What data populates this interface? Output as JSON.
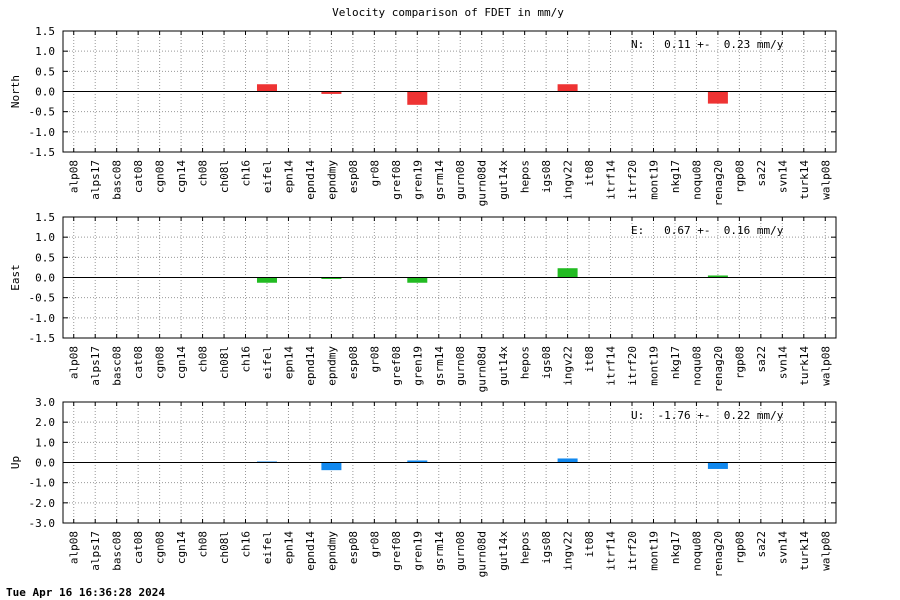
{
  "title": "Velocity comparison of FDET in mm/y",
  "footer": "Tue Apr 16 16:36:28 2024",
  "chart_data": {
    "type": "bar",
    "categories": [
      "alp08",
      "alps17",
      "basc08",
      "cat08",
      "cgn08",
      "cgn14",
      "ch08",
      "ch08l",
      "ch16",
      "eifel",
      "epn14",
      "epnd14",
      "epndmy",
      "esp08",
      "gr08",
      "gref08",
      "gren19",
      "gsrm14",
      "gurn08",
      "gurn08d",
      "gut14x",
      "hepos",
      "igs08",
      "ingv22",
      "it08",
      "itrf14",
      "itrf20",
      "mont19",
      "nkg17",
      "noqu08",
      "renag20",
      "rgp08",
      "sa22",
      "svn14",
      "turk14",
      "walp08"
    ],
    "panels": [
      {
        "ylabel": "North",
        "ylim": [
          -1.5,
          1.5
        ],
        "yticks": [
          "1.5",
          "1.0",
          "0.5",
          "0.0",
          "-0.5",
          "-1.0",
          "-1.5"
        ],
        "color": "#ee3333",
        "annotation": "N:   0.11 +-  0.23 mm/y",
        "values": [
          0,
          0,
          0,
          0,
          0,
          0,
          0,
          0,
          0,
          0.18,
          0,
          0,
          -0.06,
          0,
          0,
          0,
          -0.33,
          0,
          0,
          0,
          0,
          0,
          0,
          0.18,
          0,
          0,
          0,
          0,
          0,
          0,
          -0.3,
          0,
          0,
          0,
          0,
          0
        ]
      },
      {
        "ylabel": "East",
        "ylim": [
          -1.5,
          1.5
        ],
        "yticks": [
          "1.5",
          "1.0",
          "0.5",
          "0.0",
          "-0.5",
          "-1.0",
          "-1.5"
        ],
        "color": "#22bb22",
        "annotation": "E:   0.67 +-  0.16 mm/y",
        "values": [
          0,
          0,
          0,
          0,
          0,
          0,
          0,
          0,
          0,
          -0.13,
          0,
          0,
          -0.03,
          0,
          0,
          0,
          -0.13,
          0,
          0,
          0,
          0,
          0,
          0,
          0.23,
          0,
          0,
          0,
          0,
          0,
          0,
          0.05,
          0,
          0,
          0,
          0,
          0
        ]
      },
      {
        "ylabel": "Up",
        "ylim": [
          -3.0,
          3.0
        ],
        "yticks": [
          "3.0",
          "2.0",
          "1.0",
          "0.0",
          "-1.0",
          "-2.0",
          "-3.0"
        ],
        "color": "#1188ee",
        "annotation": "U:  -1.76 +-  0.22 mm/y",
        "values": [
          0,
          0,
          0,
          0,
          0,
          0,
          0,
          0,
          0,
          0.05,
          0,
          0,
          -0.38,
          0,
          0,
          0,
          0.1,
          0,
          0,
          0,
          0,
          0,
          0,
          0.2,
          0,
          0,
          0,
          0,
          0,
          0,
          -0.32,
          0,
          0,
          0,
          0,
          0
        ]
      }
    ],
    "grid": true
  }
}
